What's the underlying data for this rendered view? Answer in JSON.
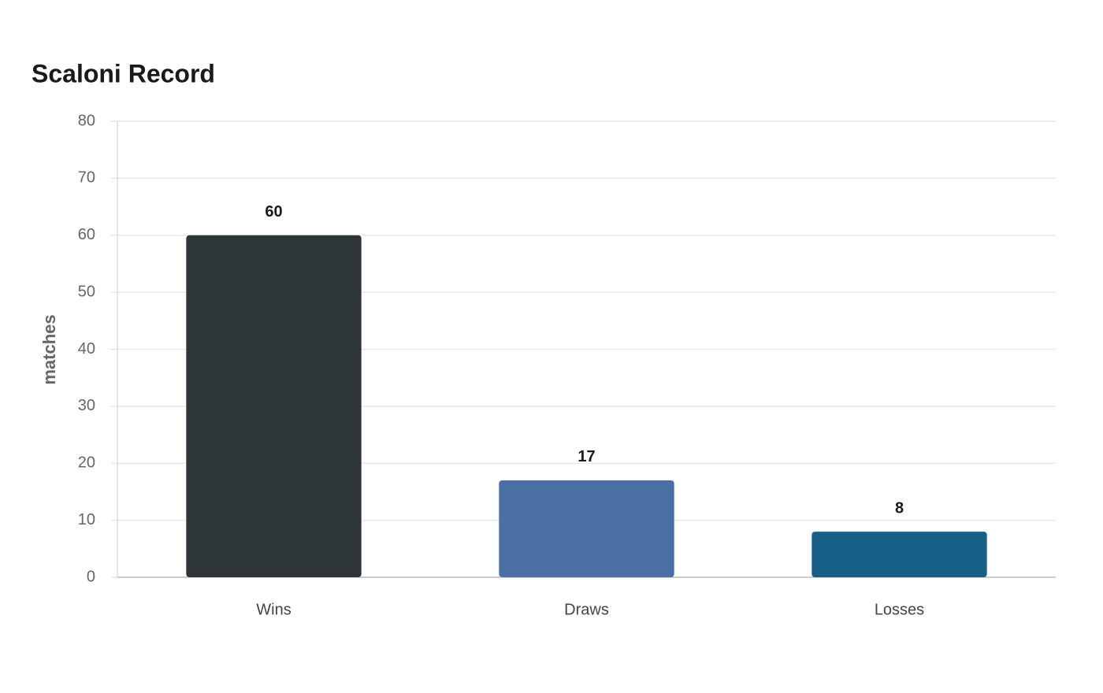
{
  "chart_data": {
    "type": "bar",
    "title": "Scaloni Record",
    "y_label": "matches",
    "categories": [
      "Wins",
      "Draws",
      "Losses"
    ],
    "values": [
      60,
      17,
      8
    ],
    "colors": [
      "#2e3538",
      "#4a6fa5",
      "#166088"
    ],
    "ylim": [
      0,
      80
    ],
    "yticks": [
      0,
      10,
      20,
      30,
      40,
      50,
      60,
      70,
      80
    ],
    "grid": true
  }
}
